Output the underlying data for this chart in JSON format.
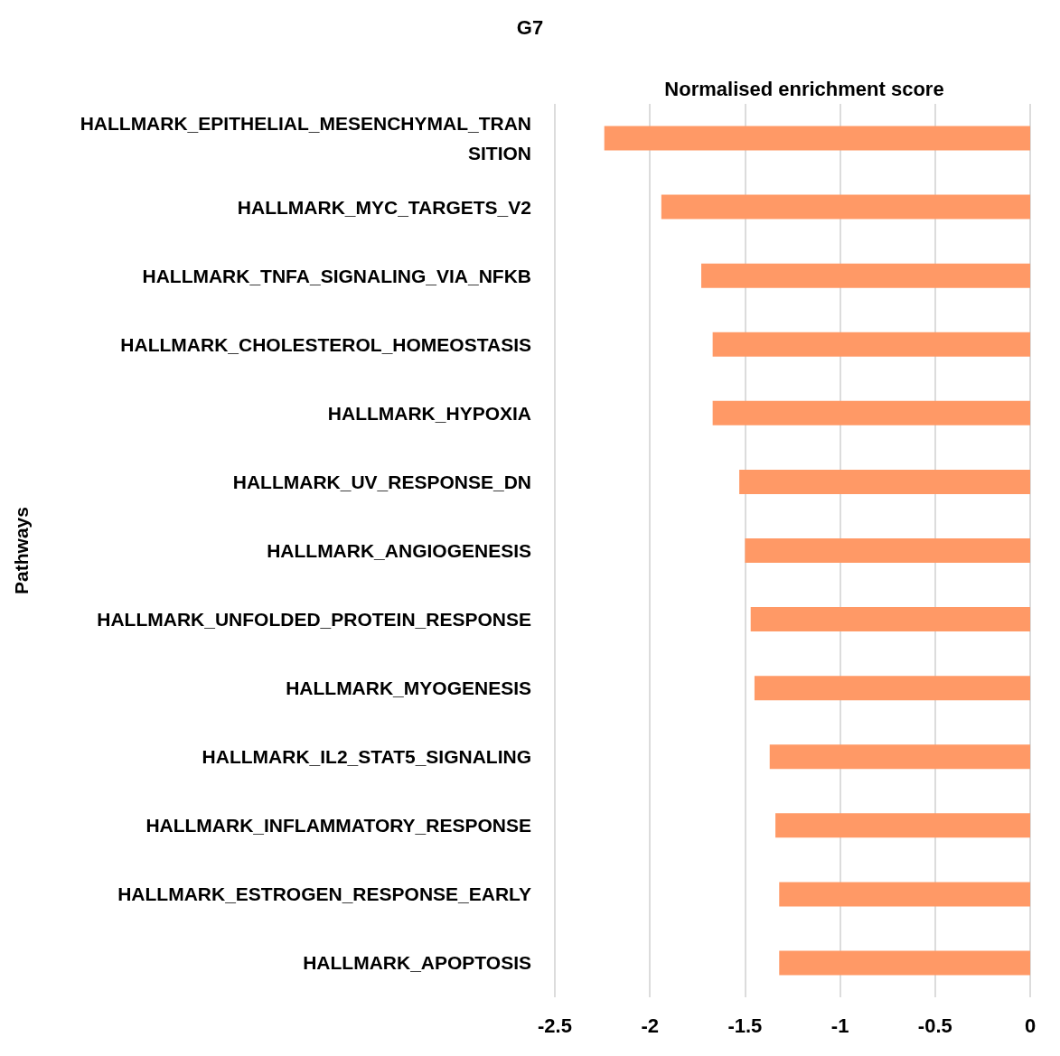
{
  "chart_data": {
    "type": "bar",
    "orientation": "horizontal",
    "title": "G7",
    "xlabel": "Normalised enrichment score",
    "ylabel": "Pathways",
    "categories": [
      "HALLMARK_EPITHELIAL_MESENCHYMAL_TRANSITION",
      "HALLMARK_MYC_TARGETS_V2",
      "HALLMARK_TNFA_SIGNALING_VIA_NFKB",
      "HALLMARK_CHOLESTEROL_HOMEOSTASIS",
      "HALLMARK_HYPOXIA",
      "HALLMARK_UV_RESPONSE_DN",
      "HALLMARK_ANGIOGENESIS",
      "HALLMARK_UNFOLDED_PROTEIN_RESPONSE",
      "HALLMARK_MYOGENESIS",
      "HALLMARK_IL2_STAT5_SIGNALING",
      "HALLMARK_INFLAMMATORY_RESPONSE",
      "HALLMARK_ESTROGEN_RESPONSE_EARLY",
      "HALLMARK_APOPTOSIS"
    ],
    "values": [
      -2.24,
      -1.94,
      -1.73,
      -1.67,
      -1.67,
      -1.53,
      -1.5,
      -1.47,
      -1.45,
      -1.37,
      -1.34,
      -1.32,
      -1.32
    ],
    "color": "#ff9966",
    "xlim": [
      -2.5,
      0
    ],
    "xticks": [
      -2.5,
      -2,
      -1.5,
      -1,
      -0.5,
      0
    ],
    "grid": "x"
  }
}
